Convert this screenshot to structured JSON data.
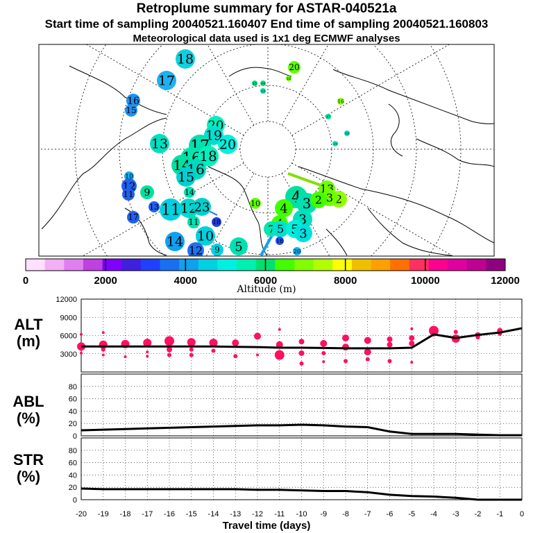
{
  "header": {
    "title": "Retroplume summary for ASTAR-040521a",
    "subtitle": "Start time of sampling 20040521.160407     End time of sampling 20040521.160803",
    "met": "Meteorological data used is 1x1 deg ECMWF analyses"
  },
  "colors": {
    "scale": [
      "#ffe0ff",
      "#f4b0f4",
      "#e080f0",
      "#c040e0",
      "#8000ff",
      "#4020e0",
      "#2040ff",
      "#1870f0",
      "#10a0f0",
      "#00d0e0",
      "#00f0e0",
      "#00f0b0",
      "#00e070",
      "#40ff00",
      "#80ff00",
      "#b0ff00",
      "#ffff00",
      "#f0c000",
      "#ffa000",
      "#ff7000",
      "#ff3060",
      "#ff0090",
      "#e000a0",
      "#c00090",
      "#900080"
    ],
    "altitude_points": "#ff1060",
    "line": "#000000"
  },
  "map": {
    "altitude_label": "Altitude (m)",
    "scale_ticks": [
      "0",
      "2000",
      "4000",
      "6000",
      "8000",
      "10000",
      "12000"
    ],
    "markers": [
      {
        "label": "18",
        "x": 267,
        "y": 85,
        "r": 14,
        "c": "#10d0e0"
      },
      {
        "label": "17",
        "x": 240,
        "y": 116,
        "r": 14,
        "c": "#20b0f0"
      },
      {
        "label": "16",
        "x": 192,
        "y": 145,
        "r": 10,
        "c": "#2090f0"
      },
      {
        "label": "15",
        "x": 189,
        "y": 159,
        "r": 9,
        "c": "#2090f0"
      },
      {
        "label": "13",
        "x": 230,
        "y": 207,
        "r": 14,
        "c": "#00e0c0"
      },
      {
        "label": "20",
        "x": 311,
        "y": 180,
        "r": 13,
        "c": "#00f0c0"
      },
      {
        "label": "19",
        "x": 308,
        "y": 195,
        "r": 14,
        "c": "#00e0d0"
      },
      {
        "label": "20",
        "x": 328,
        "y": 208,
        "r": 14,
        "c": "#00f0e0"
      },
      {
        "label": "17",
        "x": 288,
        "y": 210,
        "r": 16,
        "c": "#00e0b0"
      },
      {
        "label": "16",
        "x": 276,
        "y": 228,
        "r": 16,
        "c": "#00e8b0"
      },
      {
        "label": "18",
        "x": 300,
        "y": 225,
        "r": 15,
        "c": "#00f0c0"
      },
      {
        "label": "14",
        "x": 262,
        "y": 238,
        "r": 15,
        "c": "#00e0a0"
      },
      {
        "label": "16",
        "x": 282,
        "y": 244,
        "r": 15,
        "c": "#00d8c0"
      },
      {
        "label": "15",
        "x": 268,
        "y": 255,
        "r": 14,
        "c": "#00d0d0"
      },
      {
        "label": "10",
        "x": 186,
        "y": 254,
        "r": 7,
        "c": "#10b0f0"
      },
      {
        "label": "12",
        "x": 186,
        "y": 268,
        "r": 11,
        "c": "#2060f0"
      },
      {
        "label": "9",
        "x": 212,
        "y": 277,
        "r": 10,
        "c": "#00e0a0"
      },
      {
        "label": "11",
        "x": 185,
        "y": 280,
        "r": 9,
        "c": "#2060f0"
      },
      {
        "label": "13",
        "x": 222,
        "y": 298,
        "r": 8,
        "c": "#2060f0"
      },
      {
        "label": "14",
        "x": 273,
        "y": 277,
        "r": 8,
        "c": "#00e0b0"
      },
      {
        "label": "11",
        "x": 246,
        "y": 302,
        "r": 16,
        "c": "#00d0e0"
      },
      {
        "label": "12",
        "x": 272,
        "y": 300,
        "r": 14,
        "c": "#00d8d0"
      },
      {
        "label": "23",
        "x": 291,
        "y": 298,
        "r": 13,
        "c": "#00d0d0"
      },
      {
        "label": "17",
        "x": 192,
        "y": 313,
        "r": 9,
        "c": "#2060f0"
      },
      {
        "label": "11",
        "x": 279,
        "y": 320,
        "r": 9,
        "c": "#00e0b0"
      },
      {
        "label": "18",
        "x": 312,
        "y": 320,
        "r": 7,
        "c": "#2040e0"
      },
      {
        "label": "10",
        "x": 296,
        "y": 340,
        "r": 14,
        "c": "#00d0e0"
      },
      {
        "label": "14",
        "x": 252,
        "y": 348,
        "r": 14,
        "c": "#10a0f0"
      },
      {
        "label": "12",
        "x": 282,
        "y": 361,
        "r": 12,
        "c": "#2070f0"
      },
      {
        "label": "9",
        "x": 313,
        "y": 360,
        "r": 9,
        "c": "#00d0e0"
      },
      {
        "label": "5",
        "x": 344,
        "y": 355,
        "r": 13,
        "c": "#00e0b0"
      },
      {
        "label": "20",
        "x": 424,
        "y": 97,
        "r": 9,
        "c": "#60ff00"
      },
      {
        "label": "15",
        "x": 367,
        "y": 120,
        "r": 4,
        "c": "#00e080"
      },
      {
        "label": "14",
        "x": 379,
        "y": 120,
        "r": 4,
        "c": "#00e080"
      },
      {
        "label": "13",
        "x": 379,
        "y": 131,
        "r": 4,
        "c": "#00e0a0"
      },
      {
        "label": "16",
        "x": 416,
        "y": 113,
        "r": 4,
        "c": "#60ff00"
      },
      {
        "label": "16",
        "x": 491,
        "y": 146,
        "r": 5,
        "c": "#80ff00"
      },
      {
        "label": "17",
        "x": 473,
        "y": 168,
        "r": 4,
        "c": "#00e0a0"
      },
      {
        "label": "18",
        "x": 500,
        "y": 192,
        "r": 4,
        "c": "#00e0b0"
      },
      {
        "label": "19",
        "x": 483,
        "y": 207,
        "r": 4,
        "c": "#00f0c0"
      },
      {
        "label": "10",
        "x": 368,
        "y": 293,
        "r": 8,
        "c": "#60ff00"
      },
      {
        "label": "13",
        "x": 471,
        "y": 272,
        "r": 12,
        "c": "#70ff00"
      },
      {
        "label": "2",
        "x": 488,
        "y": 287,
        "r": 12,
        "c": "#90ff00"
      },
      {
        "label": "3",
        "x": 475,
        "y": 285,
        "r": 12,
        "c": "#70ff00"
      },
      {
        "label": "4",
        "x": 427,
        "y": 284,
        "r": 16,
        "c": "#00e0a0"
      },
      {
        "label": "3",
        "x": 442,
        "y": 293,
        "r": 15,
        "c": "#00e0b0"
      },
      {
        "label": "2",
        "x": 459,
        "y": 288,
        "r": 12,
        "c": "#40ff00"
      },
      {
        "label": "4",
        "x": 409,
        "y": 300,
        "r": 13,
        "c": "#40ff00"
      },
      {
        "label": "4",
        "x": 403,
        "y": 322,
        "r": 12,
        "c": "#40ff00"
      },
      {
        "label": "3",
        "x": 436,
        "y": 316,
        "r": 14,
        "c": "#00e0c0"
      },
      {
        "label": "7",
        "x": 391,
        "y": 330,
        "r": 11,
        "c": "#00e8b0"
      },
      {
        "label": "5",
        "x": 404,
        "y": 330,
        "r": 12,
        "c": "#00e0d0"
      },
      {
        "label": "5",
        "x": 425,
        "y": 330,
        "r": 13,
        "c": "#00f0e0"
      },
      {
        "label": "3",
        "x": 437,
        "y": 336,
        "r": 13,
        "c": "#00e0e0"
      },
      {
        "label": "18",
        "x": 403,
        "y": 347,
        "r": 6,
        "c": "#2050f0"
      },
      {
        "label": "20",
        "x": 428,
        "y": 362,
        "r": 6,
        "c": "#10b0f0"
      }
    ]
  },
  "chart_data": [
    {
      "type": "scatter",
      "title": "ALT (m)",
      "ylabel": "ALT (m)",
      "xlabel": "Travel time (days)",
      "x_ticks": [
        "-20",
        "-19",
        "-18",
        "-17",
        "-16",
        "-15",
        "-14",
        "-13",
        "-12",
        "-11",
        "-10",
        "-9",
        "-8",
        "-7",
        "-6",
        "-5",
        "-4",
        "-3",
        "-2",
        "-1",
        "0"
      ],
      "y_ticks": [
        "3000",
        "6000",
        "9000",
        "12000"
      ],
      "ylim": [
        0,
        12000
      ],
      "xlim": [
        -20,
        0
      ],
      "median": {
        "x": [
          -20,
          -19,
          -18,
          -17,
          -16,
          -15,
          -14,
          -13,
          -12,
          -11,
          -10,
          -9,
          -8,
          -7,
          -6,
          -5,
          -4,
          -3,
          -2,
          -1,
          0
        ],
        "y": [
          4200,
          4200,
          4200,
          4200,
          4200,
          4200,
          4200,
          4150,
          4100,
          4000,
          4000,
          3950,
          3900,
          3900,
          3900,
          4000,
          6200,
          5600,
          6100,
          6500,
          7200
        ]
      },
      "points": [
        {
          "x": -20,
          "y": 4200,
          "s": 6
        },
        {
          "x": -20,
          "y": 6200,
          "s": 2
        },
        {
          "x": -20,
          "y": 3100,
          "s": 2
        },
        {
          "x": -19,
          "y": 4500,
          "s": 6
        },
        {
          "x": -19,
          "y": 6500,
          "s": 2
        },
        {
          "x": -19,
          "y": 2800,
          "s": 2
        },
        {
          "x": -19,
          "y": 3700,
          "s": 3
        },
        {
          "x": -18,
          "y": 4600,
          "s": 6
        },
        {
          "x": -18,
          "y": 2500,
          "s": 2
        },
        {
          "x": -17,
          "y": 4800,
          "s": 6
        },
        {
          "x": -17,
          "y": 3300,
          "s": 2
        },
        {
          "x": -17,
          "y": 2600,
          "s": 2
        },
        {
          "x": -16,
          "y": 5100,
          "s": 7
        },
        {
          "x": -16,
          "y": 3700,
          "s": 4
        },
        {
          "x": -16,
          "y": 2800,
          "s": 3
        },
        {
          "x": -15,
          "y": 4900,
          "s": 6
        },
        {
          "x": -15,
          "y": 3700,
          "s": 3
        },
        {
          "x": -15,
          "y": 2800,
          "s": 3
        },
        {
          "x": -14,
          "y": 4800,
          "s": 6
        },
        {
          "x": -14,
          "y": 3500,
          "s": 3
        },
        {
          "x": -13,
          "y": 4800,
          "s": 5
        },
        {
          "x": -13,
          "y": 2600,
          "s": 3
        },
        {
          "x": -12,
          "y": 5900,
          "s": 5
        },
        {
          "x": -12,
          "y": 2800,
          "s": 2
        },
        {
          "x": -11,
          "y": 4500,
          "s": 5
        },
        {
          "x": -11,
          "y": 2800,
          "s": 7
        },
        {
          "x": -11,
          "y": 7000,
          "s": 2
        },
        {
          "x": -10,
          "y": 5000,
          "s": 4
        },
        {
          "x": -10,
          "y": 3100,
          "s": 4
        },
        {
          "x": -10,
          "y": 1400,
          "s": 3
        },
        {
          "x": -9,
          "y": 4700,
          "s": 5
        },
        {
          "x": -9,
          "y": 3100,
          "s": 3
        },
        {
          "x": -9,
          "y": 1700,
          "s": 2
        },
        {
          "x": -8,
          "y": 5600,
          "s": 5
        },
        {
          "x": -8,
          "y": 4100,
          "s": 5
        },
        {
          "x": -8,
          "y": 1800,
          "s": 3
        },
        {
          "x": -7,
          "y": 5200,
          "s": 5
        },
        {
          "x": -7,
          "y": 3300,
          "s": 5
        },
        {
          "x": -7,
          "y": 2100,
          "s": 3
        },
        {
          "x": -6,
          "y": 5400,
          "s": 4
        },
        {
          "x": -6,
          "y": 4500,
          "s": 4
        },
        {
          "x": -6,
          "y": 1800,
          "s": 3
        },
        {
          "x": -5,
          "y": 5600,
          "s": 4
        },
        {
          "x": -5,
          "y": 4700,
          "s": 4
        },
        {
          "x": -5,
          "y": 7100,
          "s": 2
        },
        {
          "x": -5,
          "y": 1600,
          "s": 2
        },
        {
          "x": -4,
          "y": 6800,
          "s": 7
        },
        {
          "x": -4,
          "y": 6300,
          "s": 4
        },
        {
          "x": -3,
          "y": 5500,
          "s": 6
        },
        {
          "x": -3,
          "y": 6600,
          "s": 3
        },
        {
          "x": -2,
          "y": 6100,
          "s": 4
        },
        {
          "x": -2,
          "y": 5700,
          "s": 3
        },
        {
          "x": -1,
          "y": 6800,
          "s": 4
        },
        {
          "x": -1,
          "y": 6300,
          "s": 3
        }
      ]
    },
    {
      "type": "line",
      "title": "ABL (%)",
      "ylabel": "ABL (%)",
      "y_ticks": [
        "0",
        "20",
        "40",
        "60",
        "80"
      ],
      "ylim": [
        0,
        100
      ],
      "x": [
        -20,
        -19,
        -18,
        -17,
        -16,
        -15,
        -14,
        -13,
        -12,
        -11,
        -10,
        -9,
        -8,
        -7,
        -6,
        -5,
        -4,
        -3,
        -2,
        -1,
        0
      ],
      "y": [
        9,
        10,
        11,
        12,
        13,
        14,
        15,
        16,
        17,
        17,
        18,
        17,
        15,
        14,
        7,
        3,
        3,
        3,
        2,
        1,
        1
      ]
    },
    {
      "type": "line",
      "title": "STR (%)",
      "ylabel": "STR (%)",
      "y_ticks": [
        "0",
        "20",
        "40",
        "60",
        "80"
      ],
      "ylim": [
        0,
        100
      ],
      "x": [
        -20,
        -19,
        -18,
        -17,
        -16,
        -15,
        -14,
        -13,
        -12,
        -11,
        -10,
        -9,
        -8,
        -7,
        -6,
        -5,
        -4,
        -3,
        -2,
        -1,
        0
      ],
      "y": [
        18,
        17,
        17,
        17,
        17,
        17,
        17,
        17,
        16,
        16,
        15,
        14,
        14,
        12,
        8,
        6,
        5,
        3,
        0,
        0,
        0
      ]
    }
  ],
  "panels": {
    "alt_label": "ALT\n(m)",
    "abl_label": "ABL\n(%)",
    "str_label": "STR\n(%)",
    "xlabel": "Travel time (days)"
  }
}
